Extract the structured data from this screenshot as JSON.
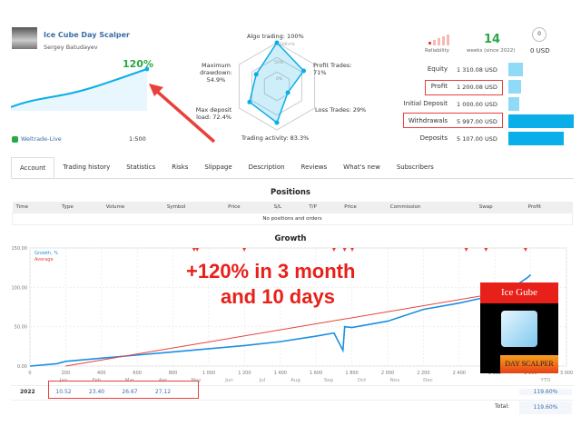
{
  "header": {
    "title": "Ice Cube Day Scalper",
    "author": "Sergey Batudayev",
    "mini_growth": "120%",
    "broker": "Weltrade-Live",
    "leverage": "1:500"
  },
  "radar": {
    "algo": "Algo trading: 100%",
    "profit": "Profit Trades: 71%",
    "loss": "Loss Trades: 29%",
    "activity": "Trading activity: 83.3%",
    "load": "Max deposit load: 72.4%",
    "drawdown": "Maximum drawdown: 54.9%",
    "ring100": "100+%",
    "ring50": "50%",
    "ring0": "0%",
    "values": {
      "algo": 100,
      "profit": 71,
      "loss": 29,
      "activity": 83.3,
      "load": 72.4,
      "drawdown": 54.9
    }
  },
  "summary": {
    "reliability": "Reliability",
    "weeks": "14",
    "weeks_label": "weeks (since 2022)",
    "subscribers_value": "0 USD",
    "subscribers_count": "0"
  },
  "stats": [
    {
      "label": "Equity",
      "value": "1 310.08 USD",
      "bar": 1310.08
    },
    {
      "label": "Profit",
      "value": "1 200.08 USD",
      "bar": 1200.08
    },
    {
      "label": "Initial Deposit",
      "value": "1 000.00 USD",
      "bar": 1000
    },
    {
      "label": "Withdrawals",
      "value": "5 997.00 USD",
      "bar": 5997
    },
    {
      "label": "Deposits",
      "value": "5 107.00 USD",
      "bar": 5107
    }
  ],
  "tabs": [
    "Account",
    "Trading history",
    "Statistics",
    "Risks",
    "Slippage",
    "Description",
    "Reviews",
    "What's new",
    "Subscribers"
  ],
  "positions": {
    "title": "Positions",
    "columns": [
      "Time",
      "Type",
      "Volume",
      "Symbol",
      "Price",
      "S/L",
      "T/P",
      "Price",
      "Commission",
      "Swap",
      "Profit"
    ],
    "empty": "No positions and orders"
  },
  "growth": {
    "title": "Growth",
    "overlay1": "+120% in 3 month",
    "overlay2": "and 10 days",
    "logo_top": "Ice Gube",
    "logo_bottom": "DAY SCALPER",
    "colors": {
      "growth": "#1a8fe3",
      "average": "#e8413c"
    }
  },
  "chart_data": {
    "type": "line",
    "title": "Growth",
    "legend": [
      "Growth, %",
      "Average"
    ],
    "legend_position": "top-left",
    "xlim": [
      0,
      3000
    ],
    "ylim": [
      0,
      150
    ],
    "x_ticks": [
      "0",
      "200",
      "400",
      "600",
      "800",
      "1 000",
      "1 200",
      "1 400",
      "1 600",
      "1 800",
      "2 000",
      "2 200",
      "2 400",
      "2 600",
      "2 800",
      "3 000"
    ],
    "y_ticks": [
      "0.00",
      "50.00",
      "100.00",
      "150.00"
    ],
    "grid": true,
    "series": [
      {
        "name": "Growth, %",
        "x": [
          0,
          150,
          200,
          400,
          600,
          800,
          1000,
          1200,
          1400,
          1600,
          1700,
          1750,
          1760,
          1800,
          2000,
          2200,
          2400,
          2600,
          2700,
          2780,
          2800
        ],
        "y": [
          0,
          3,
          6,
          10,
          14,
          18,
          22,
          26,
          31,
          38,
          42,
          20,
          50,
          49,
          57,
          72,
          80,
          90,
          100,
          112,
          116
        ]
      },
      {
        "name": "Average",
        "x": [
          200,
          2600
        ],
        "y": [
          0,
          92
        ]
      }
    ]
  },
  "yearly": {
    "months": [
      "Jan",
      "Feb",
      "Mar",
      "Apr",
      "May",
      "Jun",
      "Jul",
      "Aug",
      "Sep",
      "Oct",
      "Nov",
      "Dec"
    ],
    "ytd_label": "YTD",
    "year": "2022",
    "values": [
      "10.52",
      "23.40",
      "26.67",
      "27.12",
      "",
      "",
      "",
      "",
      "",
      "",
      "",
      ""
    ],
    "ytd": "119.60%",
    "total_label": "Total:",
    "total": "119.60%"
  }
}
